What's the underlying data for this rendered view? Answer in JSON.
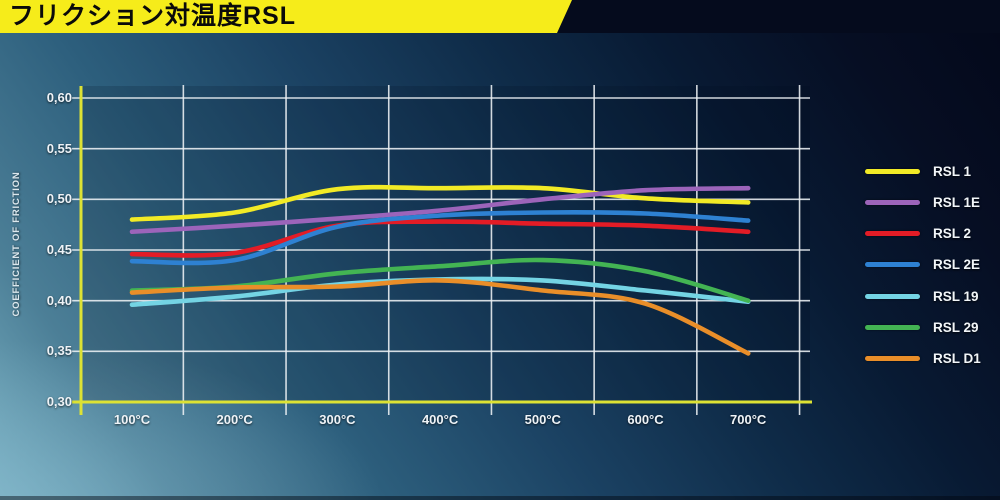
{
  "banner": {
    "title": "フリクション対温度RSL"
  },
  "colors": {
    "banner_bg": "#f6ec1a",
    "axis": "#dde234",
    "grid": "#eef2f5",
    "plot_shade": "rgba(0,10,28,0.17)"
  },
  "chart_data": {
    "type": "line",
    "title": "フリクション対温度RSL",
    "xlabel": "",
    "ylabel": "COEFFICIENT OF FRICTION",
    "x_unit": "°C",
    "x": [
      100,
      200,
      300,
      400,
      500,
      600,
      700
    ],
    "x_tick_labels": [
      "100°C",
      "200°C",
      "300°C",
      "400°C",
      "500°C",
      "600°C",
      "700°C"
    ],
    "y_ticks": [
      0.6,
      0.55,
      0.5,
      0.45,
      0.4,
      0.35,
      0.3
    ],
    "y_tick_labels": [
      "0,60",
      "0,55",
      "0,50",
      "0,45",
      "0,40",
      "0,35",
      "0,30"
    ],
    "ylim": [
      0.3,
      0.6
    ],
    "xlim": [
      100,
      700
    ],
    "grid": true,
    "legend_position": "right",
    "series": [
      {
        "name": "RSL 1",
        "color": "#f2ea26",
        "values": [
          0.48,
          0.487,
          0.51,
          0.511,
          0.511,
          0.501,
          0.497
        ]
      },
      {
        "name": "RSL 1E",
        "color": "#9c64ba",
        "values": [
          0.468,
          0.474,
          0.481,
          0.489,
          0.5,
          0.509,
          0.511
        ]
      },
      {
        "name": "RSL 2",
        "color": "#e31c26",
        "values": [
          0.446,
          0.447,
          0.474,
          0.478,
          0.476,
          0.474,
          0.468
        ]
      },
      {
        "name": "RSL 2E",
        "color": "#2e81d2",
        "values": [
          0.439,
          0.44,
          0.473,
          0.484,
          0.487,
          0.486,
          0.479
        ]
      },
      {
        "name": "RSL 19",
        "color": "#74d4e4",
        "values": [
          0.396,
          0.404,
          0.416,
          0.421,
          0.42,
          0.41,
          0.399
        ]
      },
      {
        "name": "RSL 29",
        "color": "#43b453",
        "values": [
          0.41,
          0.414,
          0.427,
          0.434,
          0.44,
          0.429,
          0.4
        ]
      },
      {
        "name": "RSL D1",
        "color": "#e98e29",
        "values": [
          0.408,
          0.413,
          0.414,
          0.42,
          0.41,
          0.397,
          0.348
        ]
      }
    ]
  }
}
